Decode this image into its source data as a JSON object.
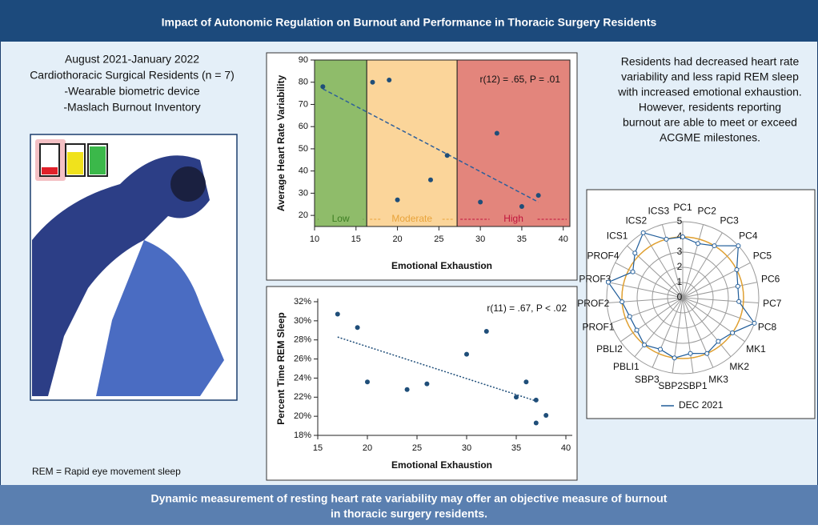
{
  "header": {
    "title": "Impact of Autonomic Regulation on Burnout and Performance in Thoracic Surgery Residents"
  },
  "left_text": [
    "August 2021-January 2022",
    "Cardiothoracic Surgical Residents (n = 7)",
    "-Wearable biometric device",
    "-Maslach Burnout Inventory"
  ],
  "note": "REM = Rapid eye movement sleep",
  "right_text": [
    "Residents had decreased heart rate",
    "variability and less rapid REM sleep",
    "with increased emotional exhaustion.",
    "However, residents reporting",
    "burnout are able to meet or exceed",
    "ACGME milestones."
  ],
  "footer": [
    "Dynamic measurement of resting heart rate variability may offer an objective measure of burnout",
    "in thoracic surgery residents."
  ],
  "chart_data": [
    {
      "type": "scatter",
      "x_label": "Emotional Exhaustion",
      "y_label": "Average Heart Rate Variability",
      "annotation": "r(12) = .65, P = .01",
      "color": "#1f4e79",
      "frame": true,
      "x": [
        11,
        17,
        19,
        20,
        24,
        26,
        30,
        32,
        35,
        37
      ],
      "values": [
        78,
        80,
        81,
        27,
        36,
        47,
        26,
        57,
        24,
        29
      ],
      "trendline": {
        "x": [
          11,
          37
        ],
        "values": [
          77,
          26
        ],
        "color": "#2e5f9a"
      },
      "zones": [
        {
          "name": "Low",
          "from": 10,
          "to": 16.3,
          "color": "#8fbc6a",
          "label_color": "#3c7d22"
        },
        {
          "name": "Moderate",
          "from": 16.3,
          "to": 27.2,
          "color": "#fbd59a",
          "label_color": "#e8a33a"
        },
        {
          "name": "High",
          "from": 27.2,
          "to": 40.8,
          "color": "#e3857c",
          "label_color": "#c0143c"
        }
      ],
      "xlim": [
        10,
        40.8
      ],
      "xticks": [
        10,
        15,
        20,
        25,
        30,
        35,
        40
      ],
      "ylim": [
        15,
        90
      ],
      "yticks": [
        20,
        30,
        40,
        50,
        60,
        70,
        80,
        90
      ]
    },
    {
      "type": "scatter",
      "x_label": "Emotional Exhaustion",
      "y_label": "Percent Time REM Sleep",
      "annotation": "r(11) = .67, P < .02",
      "color": "#1f4e79",
      "frame": false,
      "x": [
        17,
        19,
        20,
        24,
        26,
        30,
        32,
        35,
        36,
        37,
        37,
        38
      ],
      "values": [
        30.7,
        29.3,
        23.6,
        22.8,
        23.4,
        26.5,
        28.9,
        22,
        23.6,
        21.7,
        19.3,
        20.1
      ],
      "trendline": {
        "x": [
          17,
          37
        ],
        "values": [
          28.3,
          21.6
        ],
        "color": "#1f4e79"
      },
      "xlim": [
        15,
        40
      ],
      "xticks": [
        15,
        20,
        25,
        30,
        35,
        40
      ],
      "ylim": [
        18,
        32
      ],
      "yticks": [
        {
          "value": 18,
          "label": "18%"
        },
        {
          "value": 20,
          "label": "20%"
        },
        {
          "value": 22,
          "label": "22%"
        },
        {
          "value": 24,
          "label": "24%"
        },
        {
          "value": 26,
          "label": "26%"
        },
        {
          "value": 28,
          "label": "28%"
        },
        {
          "value": 30,
          "label": "30%"
        },
        {
          "value": 32,
          "label": "32%"
        }
      ]
    },
    {
      "type": "radar",
      "categories": [
        "PC1",
        "PC2",
        "PC3",
        "PC4",
        "PC5",
        "PC6",
        "PC7",
        "PC8",
        "MK1",
        "MK2",
        "MK3",
        "SBP1",
        "SBP2",
        "SBP3",
        "PBLI1",
        "PBLI2",
        "PROF1",
        "PROF2",
        "PROF3",
        "PROF4",
        "ICS1",
        "ICS2",
        "ICS3"
      ],
      "series": [
        {
          "name": "DEC 2021",
          "color": "#1f5c99",
          "values": [
            4,
            3.7,
            4,
            5,
            4,
            3.7,
            3.7,
            5,
            4,
            3.7,
            4,
            3.7,
            4,
            3.7,
            4,
            3.7,
            3.7,
            4,
            5,
            3.7,
            4.3,
            5,
            4
          ]
        }
      ],
      "ref_ring": {
        "value": 4,
        "color": "#e0a030"
      },
      "rlim": [
        0,
        5
      ],
      "rticks": [
        0,
        1,
        2,
        3,
        4,
        5
      ]
    }
  ]
}
